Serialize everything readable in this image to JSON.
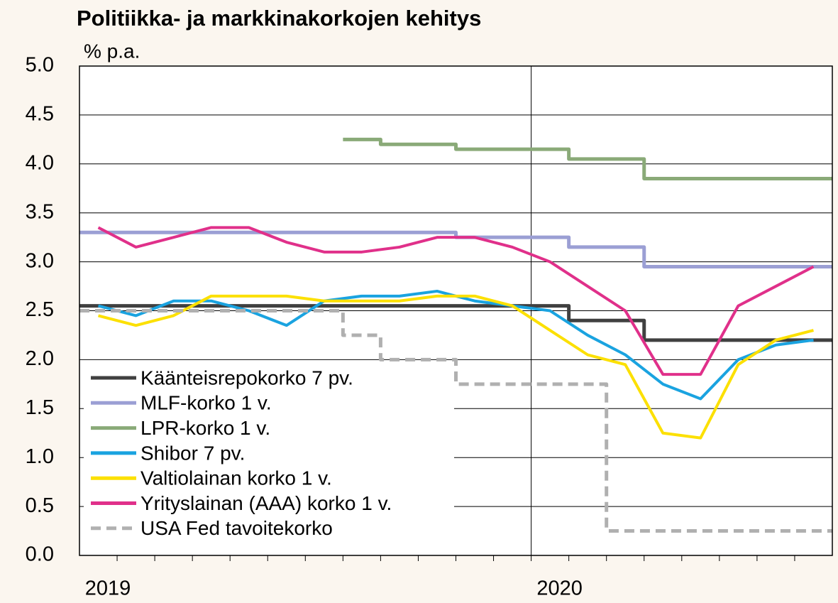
{
  "chart_data": {
    "type": "line",
    "title": "Politiikka- ja markkinakorkojen kehitys",
    "y_label": "% p.a.",
    "x": [
      "2019-01",
      "2019-02",
      "2019-03",
      "2019-04",
      "2019-05",
      "2019-06",
      "2019-07",
      "2019-08",
      "2019-09",
      "2019-10",
      "2019-11",
      "2019-12",
      "2020-01",
      "2020-02",
      "2020-03",
      "2020-04",
      "2020-05",
      "2020-06",
      "2020-07",
      "2020-08"
    ],
    "xticks": [
      {
        "value": "2019-01",
        "label": "2019"
      },
      {
        "value": "2020-01",
        "label": "2020"
      }
    ],
    "ylim": [
      0,
      5
    ],
    "yticks": [
      {
        "value": 0,
        "label": "0.0"
      },
      0.5,
      {
        "value": 1,
        "label": "1.0"
      },
      1.5,
      {
        "value": 2,
        "label": "2.0"
      },
      2.5,
      {
        "value": 3,
        "label": "3.0"
      },
      3.5,
      {
        "value": 4,
        "label": "4.0"
      },
      4.5,
      {
        "value": 5,
        "label": "5.0"
      }
    ],
    "grid": true,
    "legend": "lower left",
    "series": [
      {
        "name": "Käänteisrepokorko 7 pv.",
        "color": "#404040",
        "step": true,
        "values": [
          2.55,
          2.55,
          2.55,
          2.55,
          2.55,
          2.55,
          2.55,
          2.55,
          2.55,
          2.55,
          2.55,
          2.55,
          2.55,
          2.4,
          2.4,
          2.2,
          2.2,
          2.2,
          2.2,
          2.2
        ]
      },
      {
        "name": "MLF-korko 1 v.",
        "color": "#9b9fd4",
        "step": true,
        "values": [
          3.3,
          3.3,
          3.3,
          3.3,
          3.3,
          3.3,
          3.3,
          3.3,
          3.3,
          3.3,
          3.25,
          3.25,
          3.25,
          3.15,
          3.15,
          2.95,
          2.95,
          2.95,
          2.95,
          2.95
        ]
      },
      {
        "name": "LPR-korko 1 v.",
        "color": "#8aaa78",
        "step": true,
        "values": [
          null,
          null,
          null,
          null,
          null,
          null,
          null,
          4.25,
          4.2,
          4.2,
          4.15,
          4.15,
          4.15,
          4.05,
          4.05,
          3.85,
          3.85,
          3.85,
          3.85,
          3.85
        ]
      },
      {
        "name": "Shibor 7 pv.",
        "color": "#1aa3e0",
        "values": [
          2.55,
          2.45,
          2.6,
          2.6,
          2.5,
          2.35,
          2.6,
          2.65,
          2.65,
          2.7,
          2.6,
          2.55,
          2.5,
          2.25,
          2.05,
          1.75,
          1.6,
          2.0,
          2.15,
          2.2
        ]
      },
      {
        "name": "Valtiolainan korko 1 v.",
        "color": "#fce000",
        "values": [
          2.45,
          2.35,
          2.45,
          2.65,
          2.65,
          2.65,
          2.6,
          2.6,
          2.6,
          2.65,
          2.65,
          2.55,
          2.3,
          2.05,
          1.95,
          1.25,
          1.2,
          1.95,
          2.2,
          2.3
        ]
      },
      {
        "name": "Yrityslainan (AAA) korko 1 v.",
        "color": "#e0308a",
        "values": [
          3.35,
          3.15,
          3.25,
          3.35,
          3.35,
          3.2,
          3.1,
          3.1,
          3.15,
          3.25,
          3.25,
          3.15,
          3.0,
          2.75,
          2.5,
          1.85,
          1.85,
          2.55,
          2.75,
          2.95
        ]
      },
      {
        "name": "USA Fed tavoitekorko",
        "color": "#b0b0b0",
        "step": true,
        "dashed": true,
        "values": [
          2.5,
          2.5,
          2.5,
          2.5,
          2.5,
          2.5,
          2.5,
          2.25,
          2.0,
          2.0,
          1.75,
          1.75,
          1.75,
          1.75,
          0.25,
          0.25,
          0.25,
          0.25,
          0.25,
          0.25
        ]
      }
    ]
  }
}
